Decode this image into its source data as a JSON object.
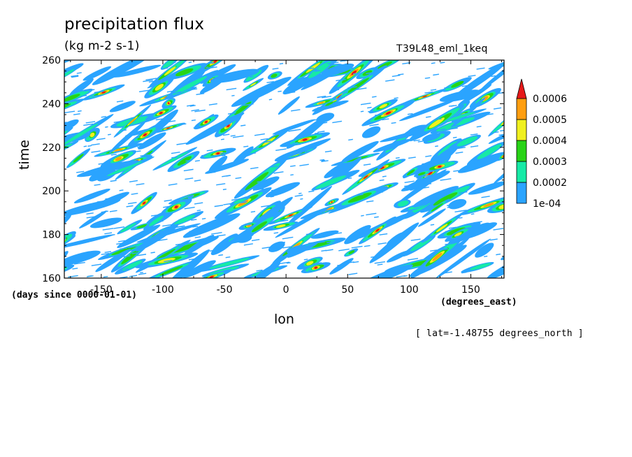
{
  "chart_data": {
    "type": "heatmap",
    "title": "precipitation flux",
    "units": "(kg m-2 s-1)",
    "dataset": "T39L48_eml_1keq",
    "xlabel": "lon",
    "ylabel": "time",
    "x_units": "(degrees_east)",
    "y_units": "(days since 0000-01-01)",
    "annotation": "[ lat=-1.48755 degrees_north ]",
    "xlim": [
      -180,
      177
    ],
    "ylim": [
      160,
      260
    ],
    "x_ticks": [
      -150,
      -100,
      -50,
      0,
      50,
      100,
      150
    ],
    "y_ticks": [
      160,
      180,
      200,
      220,
      240,
      260
    ],
    "x_tick_labels": [
      "-150",
      "-100",
      "-50",
      "0",
      "50",
      "100",
      "150"
    ],
    "y_tick_labels": [
      "160",
      "180",
      "200",
      "220",
      "240",
      "260"
    ],
    "colorbar": {
      "levels": [
        0.0001,
        0.0002,
        0.0003,
        0.0004,
        0.0005,
        0.0006
      ],
      "labels": [
        "1e-04",
        "0.0002",
        "0.0003",
        "0.0004",
        "0.0005",
        "0.0006"
      ],
      "colors": [
        "#ffffff",
        "#2aa4ff",
        "#16eaa6",
        "#28d316",
        "#f0f01e",
        "#ff9e10",
        "#e61919"
      ],
      "extend": "max"
    },
    "pattern": "eastward-propagating streaks (lon increasing with time)"
  }
}
